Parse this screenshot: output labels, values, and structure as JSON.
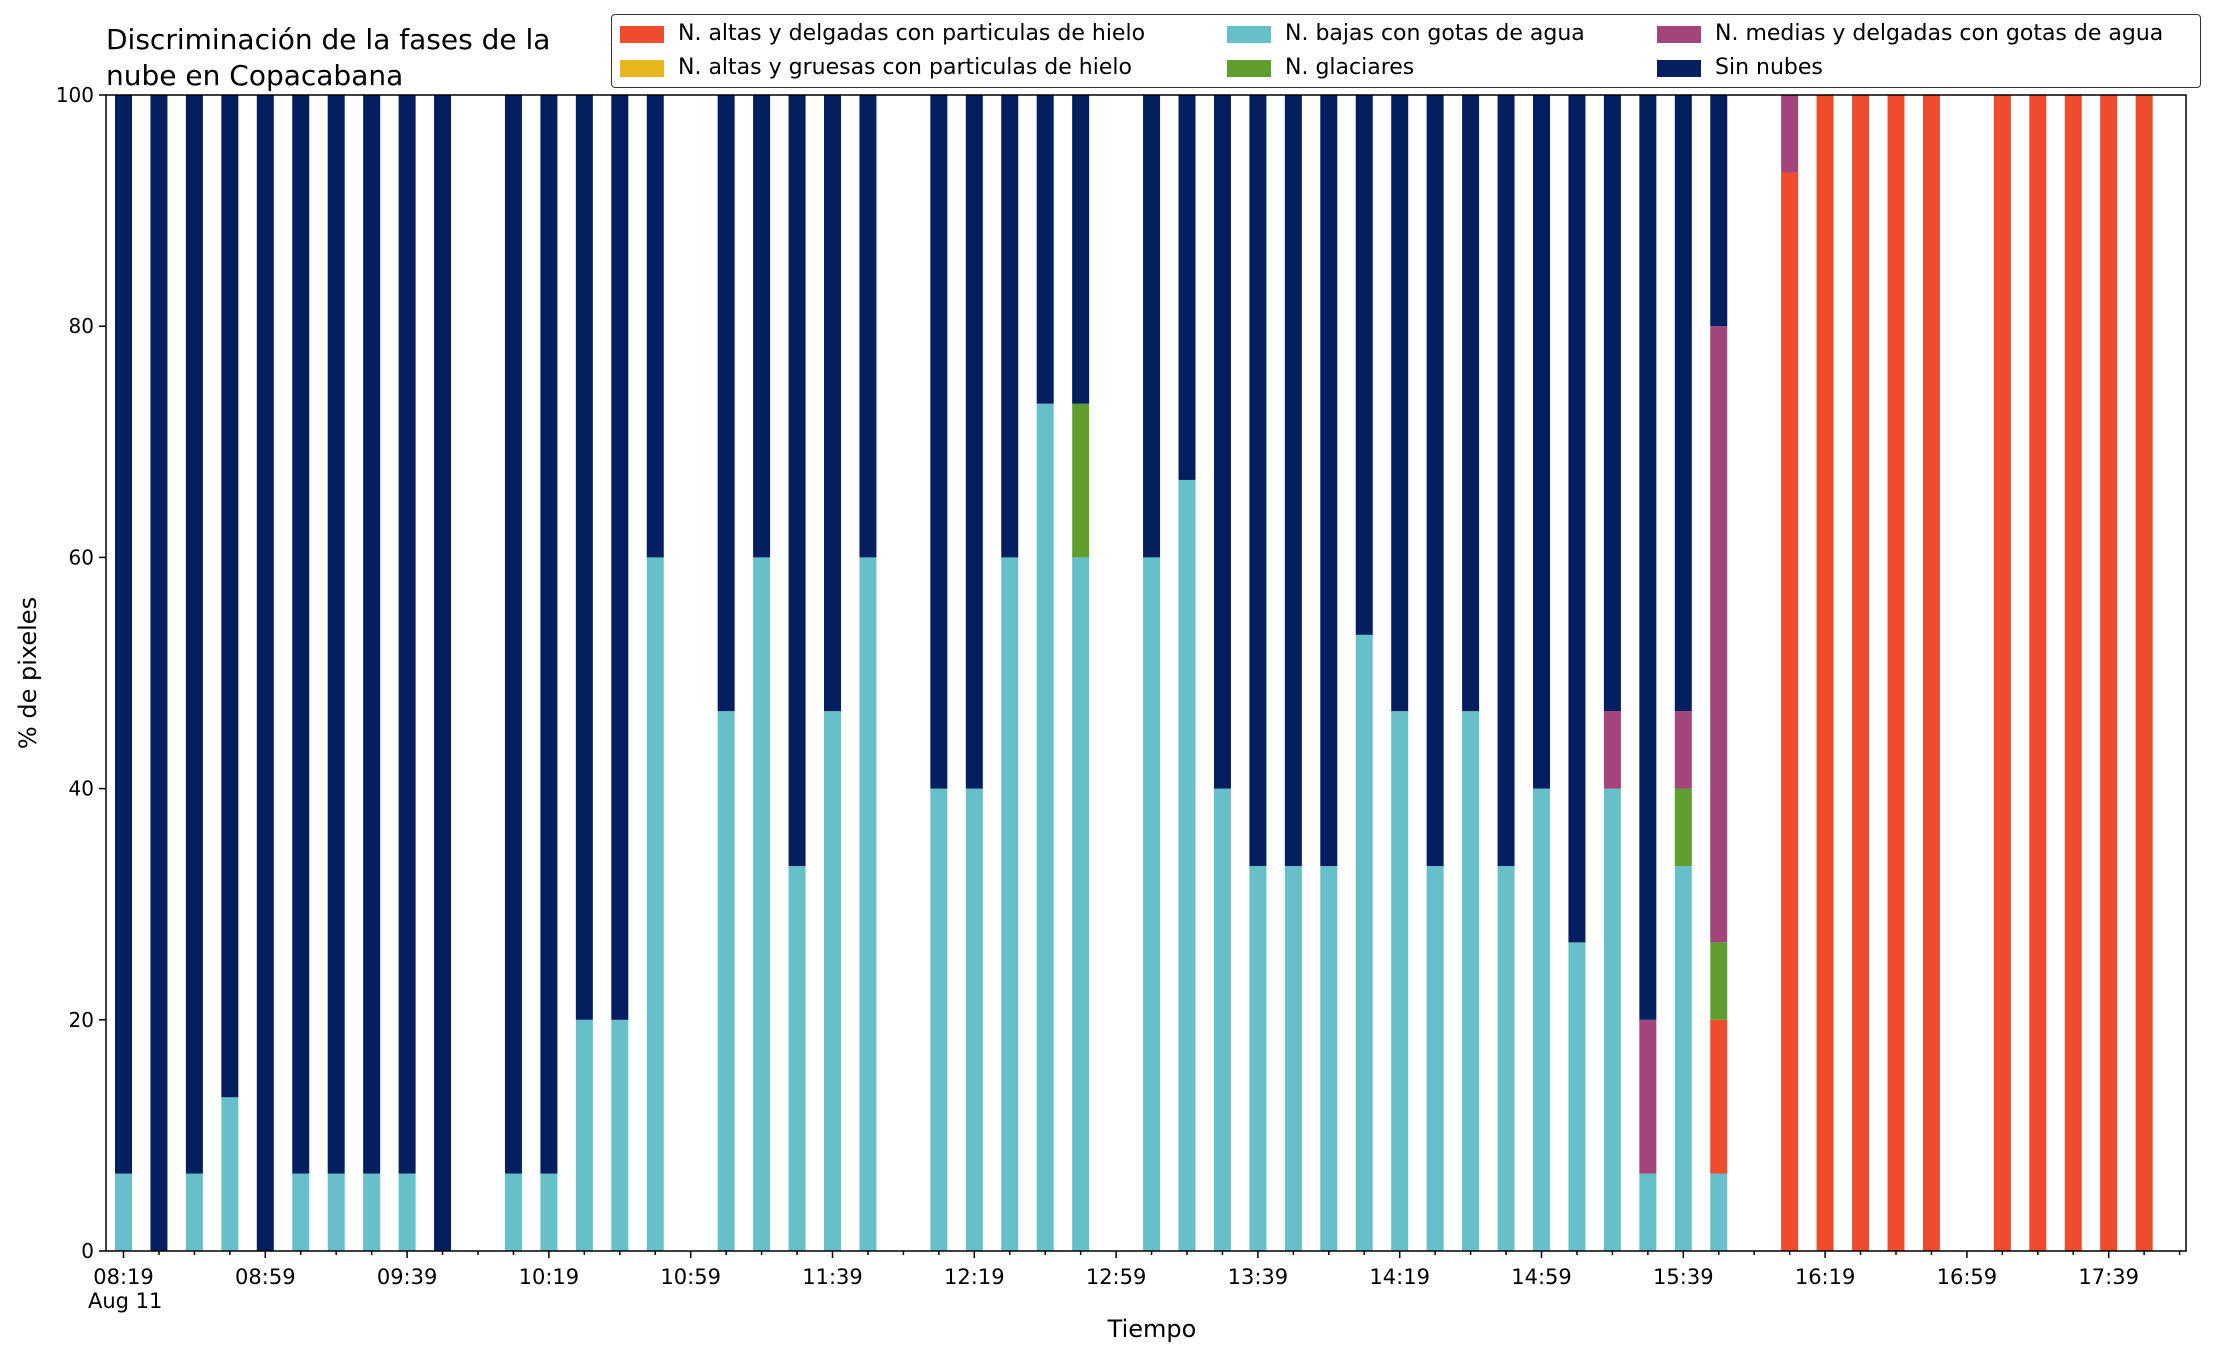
{
  "chart_data": {
    "type": "bar",
    "title": "Discriminación de la fases de la nube en Copacabana",
    "title_lines": [
      "Discriminación de la fases de la",
      "nube en Copacabana"
    ],
    "xlabel": "Tiempo",
    "ylabel": "% de pixeles",
    "ylim": [
      0,
      100
    ],
    "yticks": [
      "0",
      "20",
      "40",
      "60",
      "80",
      "100"
    ],
    "xtick_labels": [
      "08:19",
      "08:59",
      "09:39",
      "10:19",
      "10:59",
      "11:39",
      "12:19",
      "12:59",
      "13:39",
      "14:19",
      "14:59",
      "15:39",
      "16:19",
      "16:59",
      "17:39"
    ],
    "x_date_label": "Aug 11",
    "grid": false,
    "legend_position": "top-right",
    "legend_columns": 3,
    "categories": [
      "08:19",
      "08:29",
      "08:39",
      "08:49",
      "08:59",
      "09:09",
      "09:19",
      "09:29",
      "09:39",
      "09:49",
      "09:59",
      "10:09",
      "10:19",
      "10:29",
      "10:39",
      "10:49",
      "10:59",
      "11:09",
      "11:19",
      "11:29",
      "11:39",
      "11:49",
      "11:59",
      "12:09",
      "12:19",
      "12:29",
      "12:39",
      "12:49",
      "12:59",
      "13:09",
      "13:19",
      "13:29",
      "13:39",
      "13:49",
      "13:59",
      "14:09",
      "14:19",
      "14:29",
      "14:39",
      "14:49",
      "14:59",
      "15:09",
      "15:19",
      "15:29",
      "15:39",
      "15:49",
      "15:59",
      "16:09",
      "16:19",
      "16:29",
      "16:39",
      "16:49",
      "16:59",
      "17:09",
      "17:19",
      "17:29",
      "17:39",
      "17:49",
      "17:59"
    ],
    "series": [
      {
        "name": "N. bajas con gotas de agua",
        "color": "#67bfc9",
        "values": [
          6.7,
          0,
          6.7,
          13.3,
          0,
          6.7,
          6.7,
          6.7,
          6.7,
          0,
          null,
          6.7,
          6.7,
          20,
          20,
          60,
          null,
          46.7,
          60,
          33.3,
          46.7,
          60,
          null,
          40,
          40,
          60,
          73.3,
          60,
          null,
          60,
          66.7,
          40,
          33.3,
          33.3,
          33.3,
          53.3,
          46.7,
          33.3,
          46.7,
          33.3,
          40,
          26.7,
          40,
          6.7,
          33.3,
          6.7,
          null,
          0,
          0,
          0,
          0,
          0,
          null,
          0,
          0,
          0,
          0,
          0,
          null
        ]
      },
      {
        "name": "N. altas y delgadas con particulas de hielo",
        "color": "#ef4b2d",
        "values": [
          0,
          0,
          0,
          0,
          0,
          0,
          0,
          0,
          0,
          0,
          null,
          0,
          0,
          0,
          0,
          0,
          null,
          0,
          0,
          0,
          0,
          0,
          null,
          0,
          0,
          0,
          0,
          0,
          null,
          0,
          0,
          0,
          0,
          0,
          0,
          0,
          0,
          0,
          0,
          0,
          0,
          0,
          0,
          0,
          0,
          13.3,
          null,
          93.3,
          100,
          100,
          100,
          100,
          null,
          100,
          100,
          100,
          100,
          100,
          null
        ]
      },
      {
        "name": "N. glaciares",
        "color": "#5d9e2e",
        "values": [
          0,
          0,
          0,
          0,
          0,
          0,
          0,
          0,
          0,
          0,
          null,
          0,
          0,
          0,
          0,
          0,
          null,
          0,
          0,
          0,
          0,
          0,
          null,
          0,
          0,
          0,
          0,
          13.3,
          null,
          0,
          0,
          0,
          0,
          0,
          0,
          0,
          0,
          0,
          0,
          0,
          0,
          0,
          0,
          0,
          6.7,
          6.7,
          null,
          0,
          0,
          0,
          0,
          0,
          null,
          0,
          0,
          0,
          0,
          0,
          null
        ]
      },
      {
        "name": "N. medias y delgadas con gotas de agua",
        "color": "#a3457b",
        "values": [
          0,
          0,
          0,
          0,
          0,
          0,
          0,
          0,
          0,
          0,
          null,
          0,
          0,
          0,
          0,
          0,
          null,
          0,
          0,
          0,
          0,
          0,
          null,
          0,
          0,
          0,
          0,
          0,
          null,
          0,
          0,
          0,
          0,
          0,
          0,
          0,
          0,
          0,
          0,
          0,
          0,
          0,
          6.7,
          13.3,
          6.7,
          53.3,
          null,
          6.7,
          0,
          0,
          0,
          0,
          null,
          0,
          0,
          0,
          0,
          0,
          null
        ]
      },
      {
        "name": "N. altas y gruesas con particulas de hielo",
        "color": "#e8b71f",
        "values": [
          0,
          0,
          0,
          0,
          0,
          0,
          0,
          0,
          0,
          0,
          null,
          0,
          0,
          0,
          0,
          0,
          null,
          0,
          0,
          0,
          0,
          0,
          null,
          0,
          0,
          0,
          0,
          0,
          null,
          0,
          0,
          0,
          0,
          0,
          0,
          0,
          0,
          0,
          0,
          0,
          0,
          0,
          0,
          0,
          0,
          0,
          null,
          0,
          0,
          0,
          0,
          0,
          null,
          0,
          0,
          0,
          0,
          0,
          null
        ]
      },
      {
        "name": "Sin nubes",
        "color": "#031f5f",
        "values": [
          93.3,
          100,
          93.3,
          86.7,
          100,
          93.3,
          93.3,
          93.3,
          93.3,
          100,
          null,
          93.3,
          93.3,
          80,
          80,
          40,
          null,
          53.3,
          40,
          66.7,
          53.3,
          40,
          null,
          60,
          60,
          40,
          26.7,
          26.7,
          null,
          40,
          33.3,
          60,
          66.7,
          66.7,
          66.7,
          46.7,
          53.3,
          66.7,
          53.3,
          66.7,
          60,
          73.3,
          53.3,
          80,
          53.3,
          20,
          null,
          0,
          0,
          0,
          0,
          0,
          null,
          0,
          0,
          0,
          0,
          0,
          null
        ]
      }
    ],
    "legend_order": [
      "N. altas y delgadas con particulas de hielo",
      "N. altas y gruesas con particulas de hielo",
      "N. bajas con gotas de agua",
      "N. glaciares",
      "N. medias y delgadas con gotas de agua",
      "Sin nubes"
    ]
  }
}
